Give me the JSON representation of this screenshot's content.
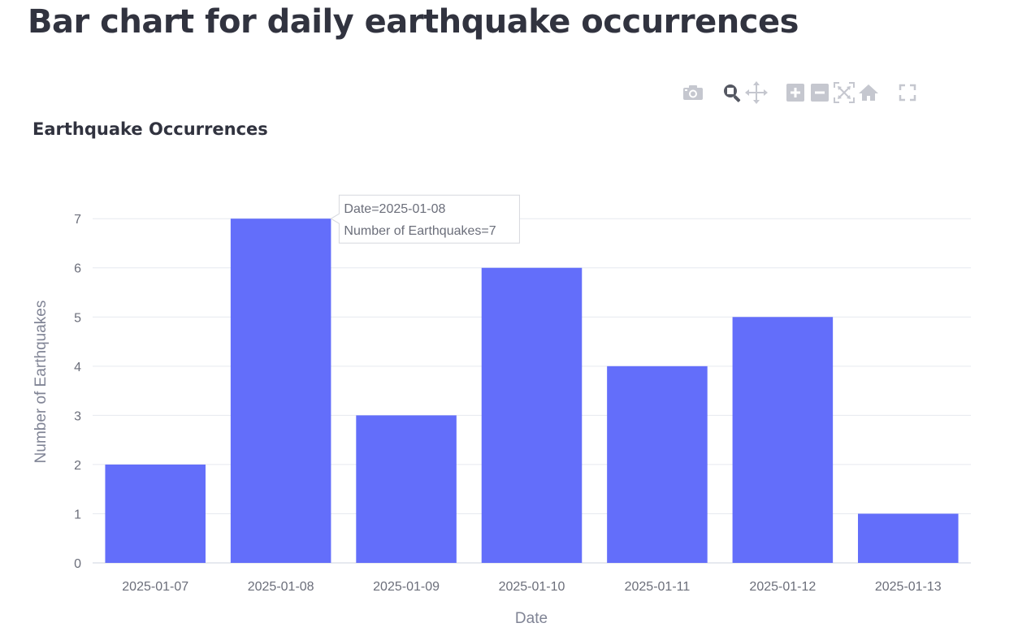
{
  "page": {
    "title": "Bar chart for daily earthquake occurrences"
  },
  "modebar": {
    "buttons": [
      {
        "icon": "camera-icon",
        "active": false
      },
      {
        "icon": "zoom-icon",
        "active": true
      },
      {
        "icon": "pan-icon",
        "active": false
      },
      {
        "icon": "zoom-in-icon",
        "active": false
      },
      {
        "icon": "zoom-out-icon",
        "active": false
      },
      {
        "icon": "autoscale-icon",
        "active": false
      },
      {
        "icon": "reset-axes-icon",
        "active": false
      },
      {
        "icon": "fullscreen-icon",
        "active": false
      }
    ]
  },
  "colors": {
    "bar": "#636efa",
    "grid": "#e6e9ef",
    "text": "#31333f",
    "icon": "#c5c7cf",
    "icon_active": "#555862"
  },
  "chart_data": {
    "type": "bar",
    "title": "Earthquake Occurrences",
    "xlabel": "Date",
    "ylabel": "Number of Earthquakes",
    "categories": [
      "2025-01-07",
      "2025-01-08",
      "2025-01-09",
      "2025-01-10",
      "2025-01-11",
      "2025-01-12",
      "2025-01-13"
    ],
    "values": [
      2,
      7,
      3,
      6,
      4,
      5,
      1
    ],
    "yticks": [
      0,
      1,
      2,
      3,
      4,
      5,
      6,
      7
    ],
    "ylim": [
      0,
      7.35
    ],
    "grid": true,
    "hover": {
      "category_index": 1,
      "line1": "Date=2025-01-08",
      "line2": "Number of Earthquakes=7"
    }
  }
}
